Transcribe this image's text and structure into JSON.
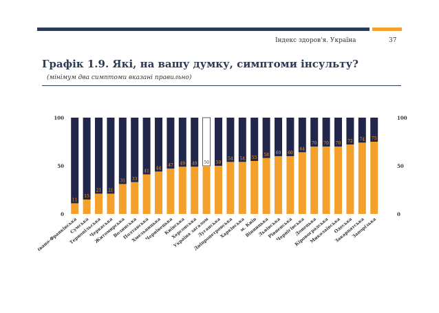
{
  "header": {
    "running_title": "Індекс здоров'я. Україна",
    "page_number": "37",
    "colors": {
      "navy": "#2d3a55",
      "accent": "#f4a12b"
    }
  },
  "figure": {
    "title": "Графік 1.9. Які, на вашу думку, симптоми інсульту?",
    "subtitle": "(мінімум два симптоми вказані правильно)"
  },
  "chart_data": {
    "type": "bar",
    "stacked_to": 100,
    "highlight_category": "Україна загалом",
    "colors": {
      "value": "#f4a12b",
      "remainder": "#22264a",
      "highlight_fill": "#ffffff"
    },
    "ylim": [
      0,
      100
    ],
    "yticks": [
      "0",
      "50",
      "100"
    ],
    "categories": [
      "Івано-Франківська",
      "Сумська",
      "Тернопільська",
      "Черкаська",
      "Житомирська",
      "Волинська",
      "Полтавська",
      "Хмельницька",
      "Чернівецька",
      "Київська",
      "Херсонська",
      "Україна загалом",
      "Луганська",
      "Дніпропетровська",
      "Харківська",
      "м. Київ",
      "Вінницька",
      "Львівська",
      "Рівненська",
      "Чернігівська",
      "Донецька",
      "Кіровоградська",
      "Миколаївська",
      "Одеська",
      "Закарпатська",
      "Запорізька"
    ],
    "values": [
      11,
      15,
      21,
      21,
      31,
      33,
      41,
      44,
      47,
      49,
      49,
      50,
      50,
      54,
      54,
      55,
      58,
      60,
      60,
      64,
      70,
      70,
      70,
      72,
      74,
      75
    ]
  }
}
